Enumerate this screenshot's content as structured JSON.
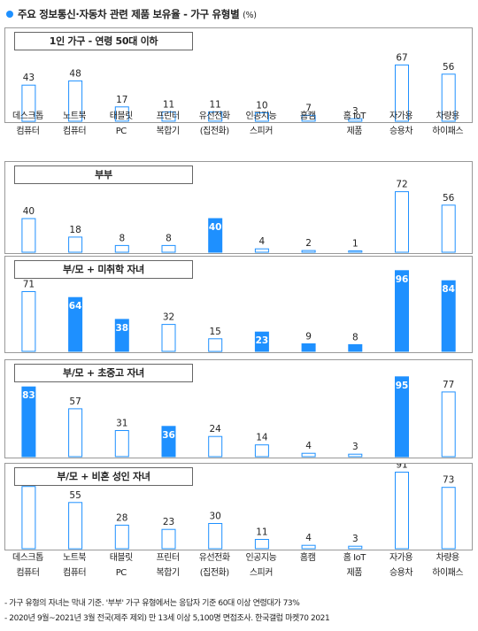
{
  "title": "주요 정보통신·자동차 관련 제품 보유율 - 가구 유형별",
  "unit": "(%)",
  "chart_data": [
    {
      "type": "bar",
      "title": "1인 가구 - 연령 50대 이하",
      "categories": [
        "데스크톱 컴퓨터",
        "노트북 컴퓨터",
        "태블릿 PC",
        "프린터 복합기",
        "유선전화 (집전화)",
        "인공지능 스피커",
        "홈캠",
        "홈 IoT 제품",
        "자가용 승용차",
        "차량용 하이패스"
      ],
      "values": [
        43,
        48,
        17,
        11,
        11,
        10,
        7,
        3,
        67,
        56
      ],
      "highlight": [
        false,
        false,
        false,
        false,
        false,
        false,
        false,
        false,
        false,
        false
      ]
    },
    {
      "type": "bar",
      "title": "부부",
      "categories": [
        "데스크톱 컴퓨터",
        "노트북 컴퓨터",
        "태블릿 PC",
        "프린터 복합기",
        "유선전화 (집전화)",
        "인공지능 스피커",
        "홈캠",
        "홈 IoT 제품",
        "자가용 승용차",
        "차량용 하이패스"
      ],
      "values": [
        40,
        18,
        8,
        8,
        40,
        4,
        2,
        1,
        72,
        56
      ],
      "highlight": [
        false,
        false,
        false,
        false,
        true,
        false,
        false,
        false,
        false,
        false
      ]
    },
    {
      "type": "bar",
      "title": "부/모 + 미취학 자녀",
      "categories": [
        "데스크톱 컴퓨터",
        "노트북 컴퓨터",
        "태블릿 PC",
        "프린터 복합기",
        "유선전화 (집전화)",
        "인공지능 스피커",
        "홈캠",
        "홈 IoT 제품",
        "자가용 승용차",
        "차량용 하이패스"
      ],
      "values": [
        71,
        64,
        38,
        32,
        15,
        23,
        9,
        8,
        96,
        84
      ],
      "highlight": [
        false,
        true,
        true,
        false,
        false,
        true,
        true,
        true,
        true,
        true
      ]
    },
    {
      "type": "bar",
      "title": "부/모 + 초중고 자녀",
      "categories": [
        "데스크톱 컴퓨터",
        "노트북 컴퓨터",
        "태블릿 PC",
        "프린터 복합기",
        "유선전화 (집전화)",
        "인공지능 스피커",
        "홈캠",
        "홈 IoT 제품",
        "자가용 승용차",
        "차량용 하이패스"
      ],
      "values": [
        83,
        57,
        31,
        36,
        24,
        14,
        4,
        3,
        95,
        77
      ],
      "highlight": [
        true,
        false,
        false,
        true,
        false,
        false,
        false,
        false,
        true,
        false
      ]
    },
    {
      "type": "bar",
      "title": "부/모 + 비혼 성인 자녀",
      "categories": [
        "데스크톱 컴퓨터",
        "노트북 컴퓨터",
        "태블릿 PC",
        "프린터 복합기",
        "유선전화 (집전화)",
        "인공지능 스피커",
        "홈캠",
        "홈 IoT 제품",
        "자가용 승용차",
        "차량용 하이패스"
      ],
      "values": [
        74,
        55,
        28,
        23,
        30,
        11,
        4,
        3,
        91,
        73
      ],
      "highlight": [
        false,
        false,
        false,
        false,
        false,
        false,
        false,
        false,
        false,
        false
      ]
    }
  ],
  "xlabels": [
    [
      "데스크톱",
      "컴퓨터"
    ],
    [
      "노트북",
      "컴퓨터"
    ],
    [
      "태블릿",
      "PC"
    ],
    [
      "프린터",
      "복합기"
    ],
    [
      "유선전화",
      "(집전화)"
    ],
    [
      "인공지능",
      "스피커"
    ],
    [
      "홈캠",
      ""
    ],
    [
      "홈 IoT",
      "제품"
    ],
    [
      "자가용",
      "승용차"
    ],
    [
      "차량용",
      "하이패스"
    ]
  ],
  "colors": {
    "accent": "#1e90ff",
    "bar_outline": "#1e90ff",
    "bar_empty": "#ffffff"
  },
  "footnotes": [
    "- 가구 유형의 자녀는 막내 기준. '부부' 가구 유형에서는 응답자 기준 60대 이상 연령대가 73%",
    "- 2020년 9월~2021년 3월 전국(제주 제외) 만 13세 이상 5,100명 면접조사. 한국갤럽 마켓70 2021"
  ]
}
